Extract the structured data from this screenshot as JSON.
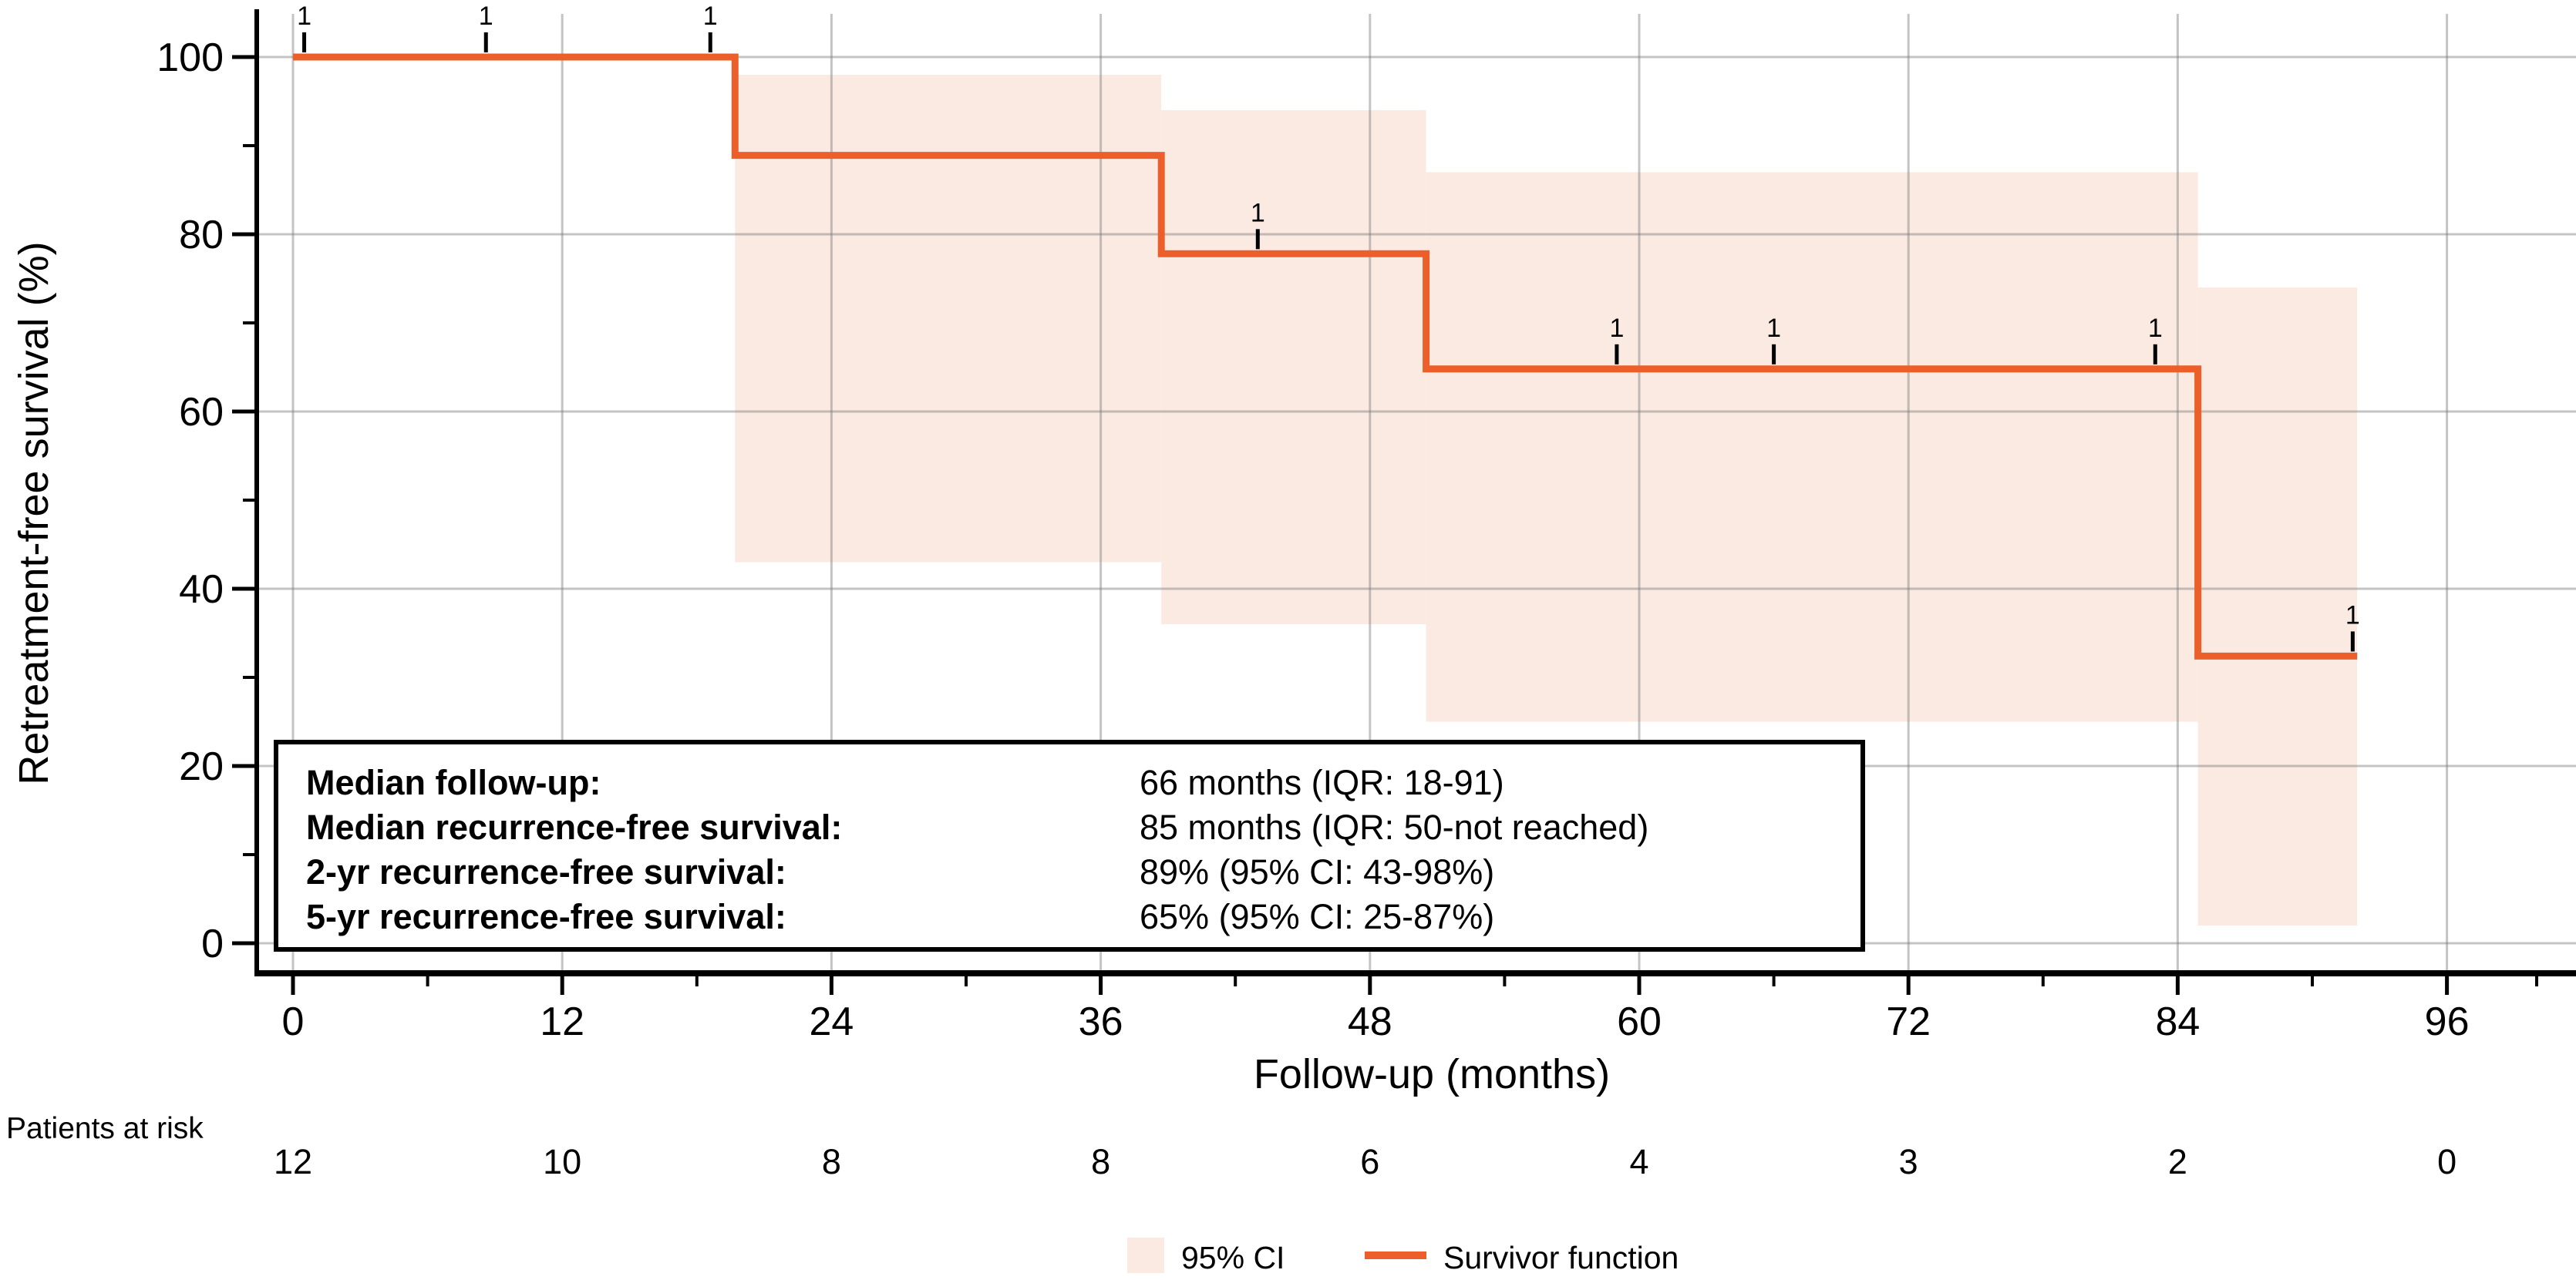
{
  "chart_data": {
    "type": "line",
    "subtype": "kaplan-meier-step",
    "title": "",
    "xlabel": "Follow-up (months)",
    "ylabel": "Retreatment-free survival (%)",
    "xlim": [
      0,
      100
    ],
    "ylim": [
      0,
      100
    ],
    "grid": true,
    "x_major_ticks": [
      0,
      12,
      24,
      36,
      48,
      60,
      72,
      84,
      96
    ],
    "x_minor_ticks": [
      6,
      18,
      30,
      42,
      54,
      66,
      78,
      90,
      100
    ],
    "y_major_ticks": [
      0,
      20,
      40,
      60,
      80,
      100
    ],
    "y_minor_ticks": [
      10,
      30,
      50,
      70,
      90
    ],
    "series": [
      {
        "name": "Survivor function",
        "color": "#ED5F2A",
        "step_points": [
          [
            0,
            100
          ],
          [
            19.7,
            100
          ],
          [
            19.7,
            88.9
          ],
          [
            38.7,
            88.9
          ],
          [
            38.7,
            77.8
          ],
          [
            50.5,
            77.8
          ],
          [
            50.5,
            64.8
          ],
          [
            84.9,
            64.8
          ],
          [
            84.9,
            32.4
          ],
          [
            92,
            32.4
          ]
        ]
      }
    ],
    "ci_band": {
      "name": "95% CI",
      "fill": "#FBEAE2",
      "segments": [
        {
          "x0": 19.7,
          "x1": 38.7,
          "low": 43,
          "high": 98
        },
        {
          "x0": 38.7,
          "x1": 50.5,
          "low": 36,
          "high": 94
        },
        {
          "x0": 50.5,
          "x1": 84.9,
          "low": 25,
          "high": 87
        },
        {
          "x0": 84.9,
          "x1": 92,
          "low": 2,
          "high": 74
        }
      ]
    },
    "censor_marks": {
      "count_label": "1",
      "points": [
        [
          0.5,
          100
        ],
        [
          8.6,
          100
        ],
        [
          18.6,
          100
        ],
        [
          43,
          77.8
        ],
        [
          59,
          64.8
        ],
        [
          66,
          64.8
        ],
        [
          83,
          64.8
        ],
        [
          91.8,
          32.4
        ]
      ]
    },
    "legend": [
      {
        "label": "95% CI",
        "marker": "band"
      },
      {
        "label": "Survivor function",
        "marker": "line"
      }
    ],
    "legend_position": "bottom-center"
  },
  "annotation_box": {
    "rows": [
      {
        "label": "Median follow-up:",
        "value": "66 months (IQR: 18-91)"
      },
      {
        "label": "Median recurrence-free survival:",
        "value": "85 months (IQR: 50-not reached)"
      },
      {
        "label": "2-yr recurrence-free survival:",
        "value": "89% (95% CI: 43-98%)"
      },
      {
        "label": "5-yr recurrence-free survival:",
        "value": "65% (95% CI: 25-87%)"
      }
    ]
  },
  "at_risk": {
    "title": "Patients at risk",
    "months": [
      0,
      12,
      24,
      36,
      48,
      60,
      72,
      84,
      96
    ],
    "counts": [
      12,
      10,
      8,
      8,
      6,
      4,
      3,
      2,
      0
    ]
  },
  "colors": {
    "line": "#ED5F2A",
    "band": "#FBEAE2",
    "grid": "#C8C8C8",
    "axis": "#000000"
  }
}
